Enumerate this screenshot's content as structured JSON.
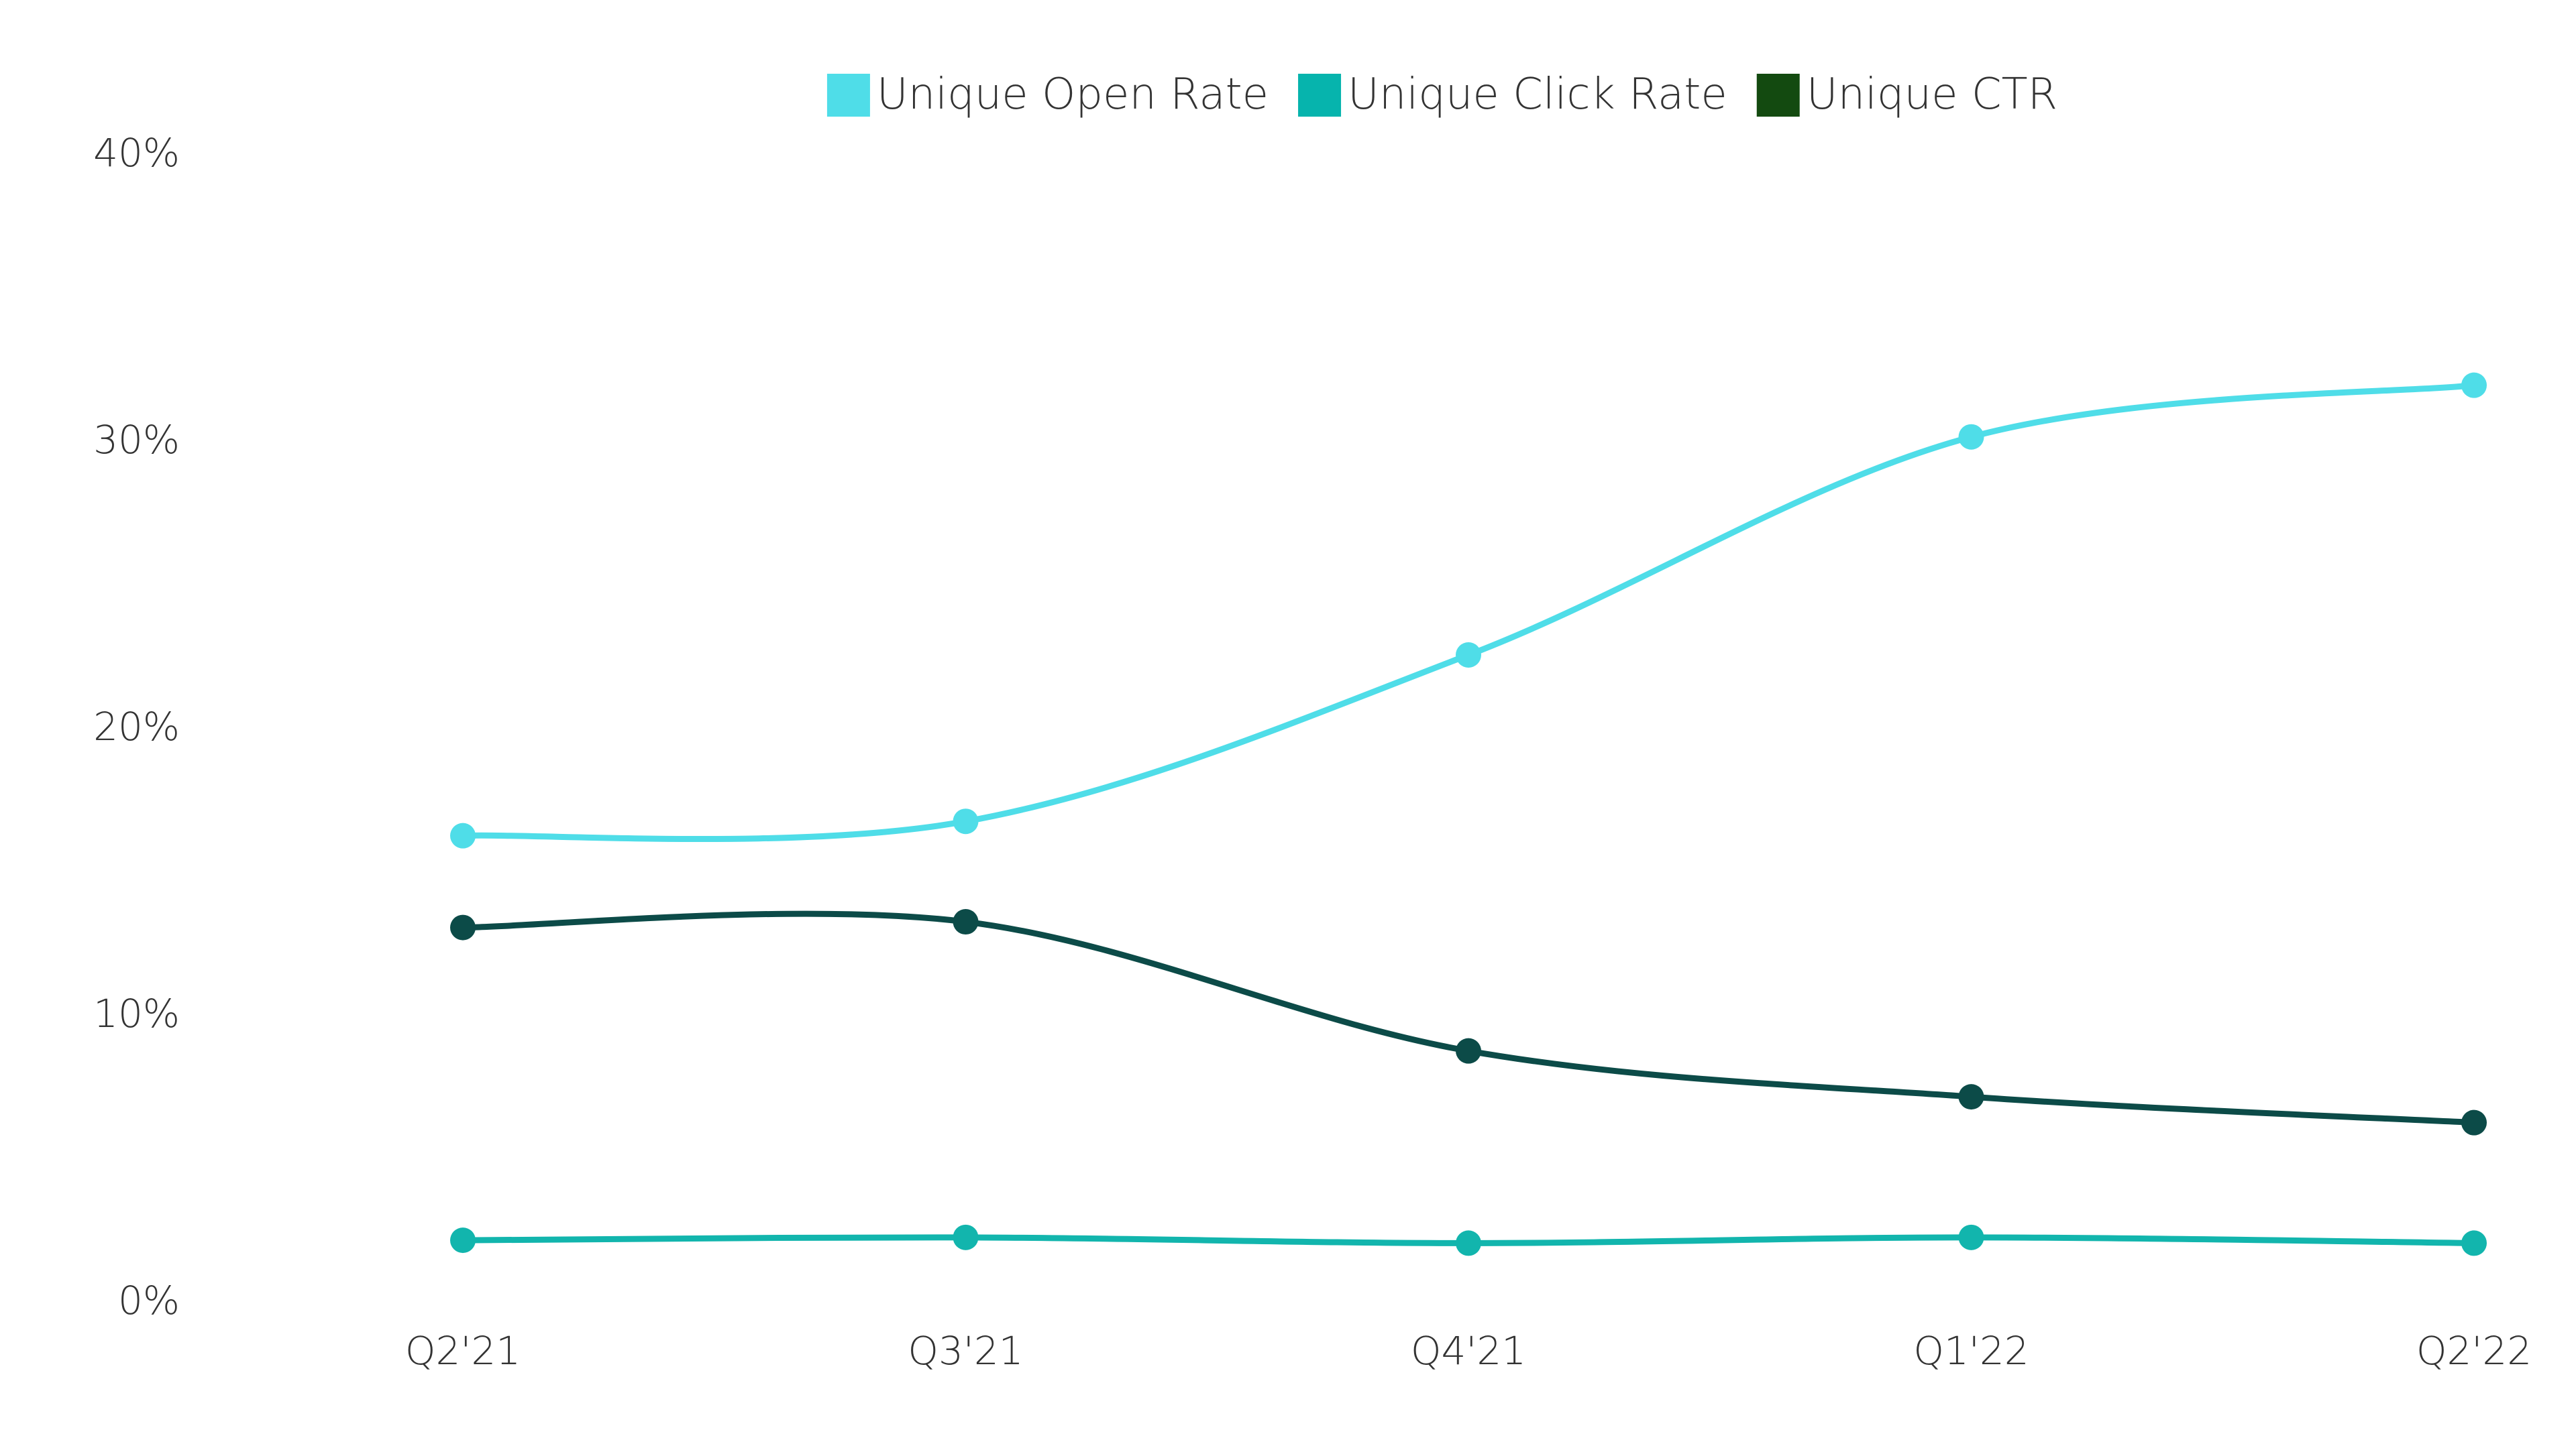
{
  "chart_data": {
    "type": "line",
    "title": "",
    "xlabel": "",
    "ylabel": "",
    "categories": [
      "Q2'21",
      "Q3'21",
      "Q4'21",
      "Q1'22",
      "Q2'22"
    ],
    "ylim": [
      0,
      40
    ],
    "y_ticks": [
      0,
      10,
      20,
      30,
      40
    ],
    "y_tick_labels": [
      "0%",
      "10%",
      "20%",
      "30%",
      "40%"
    ],
    "y_unit": "%",
    "grid": false,
    "legend_position": "top-center",
    "smooth": true,
    "series": [
      {
        "name": "Unique Open Rate",
        "color": "#4fdde8",
        "legend_color": "#4fdde8",
        "values": [
          16.2,
          16.7,
          22.5,
          30.1,
          31.9
        ]
      },
      {
        "name": "Unique Click Rate",
        "color": "#12b5ad",
        "legend_color": "#06b4ad",
        "values": [
          2.1,
          2.2,
          2.0,
          2.2,
          2.0
        ]
      },
      {
        "name": "Unique CTR",
        "color": "#0c4b48",
        "legend_color": "#134a10",
        "values": [
          13.0,
          13.2,
          8.7,
          7.1,
          6.2
        ]
      }
    ]
  }
}
